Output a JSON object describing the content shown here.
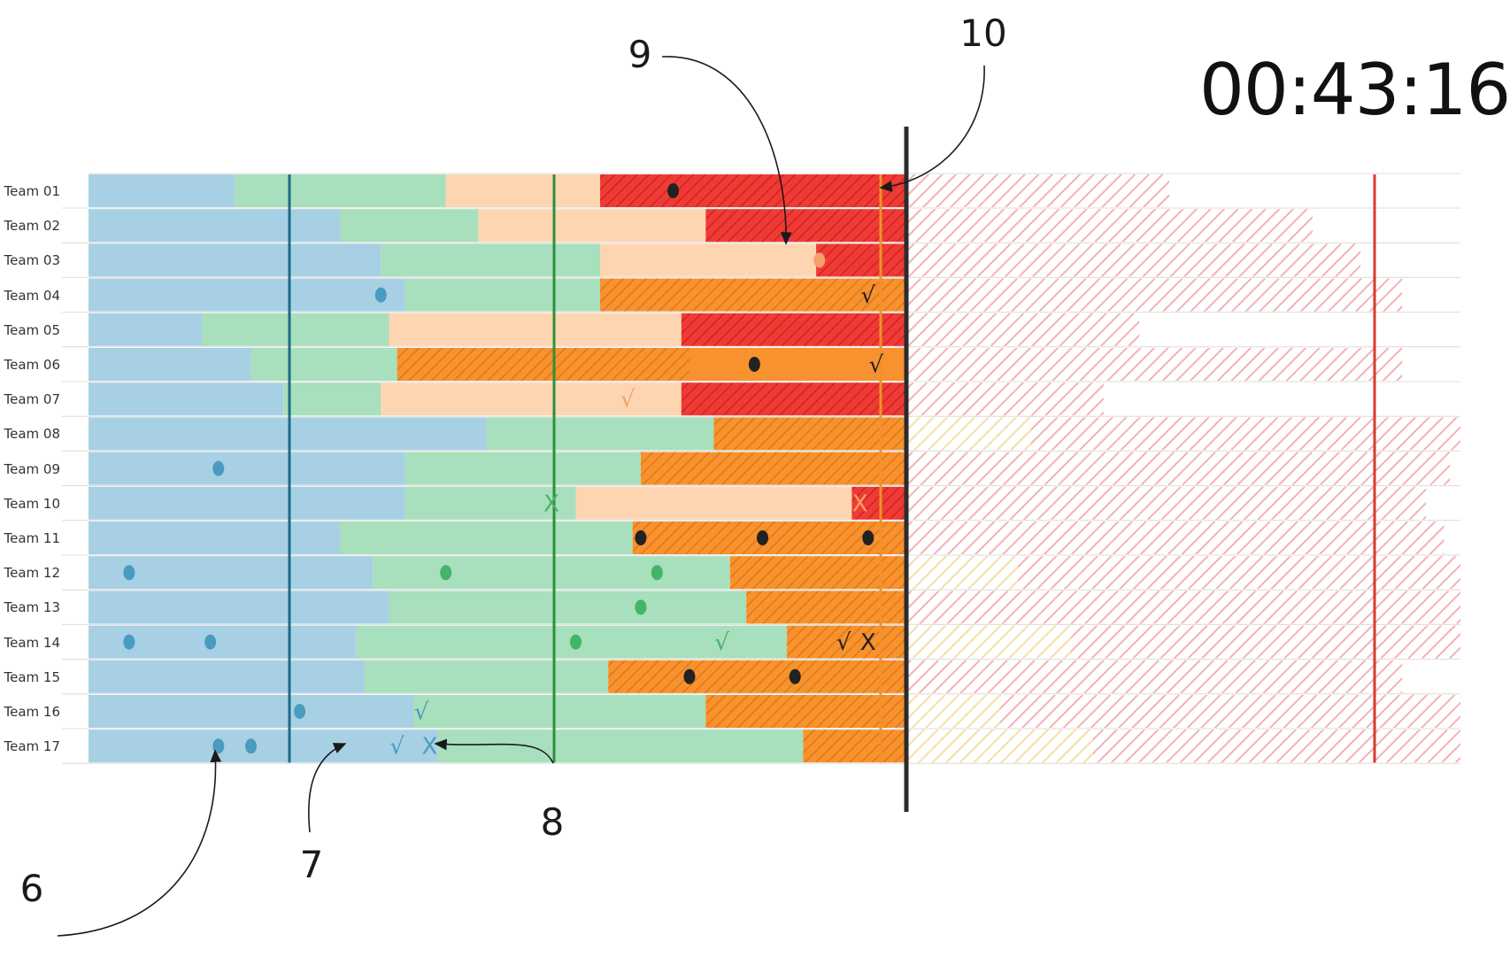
{
  "timer": "00:43:16",
  "callouts": {
    "c6": "6",
    "c7": "7",
    "c8": "8",
    "c9": "9",
    "c10": "10"
  },
  "colors": {
    "phase_blue": "#a8d0e4",
    "phase_green": "#a8dfbc",
    "phase_peach": "#fdd5b0",
    "phase_orange": "#f7922e",
    "phase_red": "#ef3b36",
    "future_hatch": "#f4b2b2",
    "future_hatch_yellow": "#f6dda6",
    "marker_dark_blue": "#1d6a8a",
    "marker_green": "#2f8f3f",
    "marker_orange": "#f0922e",
    "marker_red": "#d83a30",
    "now_line": "#2b2b2b"
  },
  "symbols": {
    "check": "√",
    "cross": "X"
  },
  "teams": [
    {
      "label": "Team 01",
      "green": 9,
      "peach": 22,
      "hatch_start": 31.5,
      "orange": null,
      "red": 31.5,
      "future": 22,
      "marks": [
        {
          "type": "dot",
          "t": 36,
          "c": "dark"
        }
      ]
    },
    {
      "label": "Team 02",
      "green": 15.5,
      "peach": 24,
      "hatch_start": null,
      "orange": null,
      "red": 38,
      "future": 34,
      "marks": []
    },
    {
      "label": "Team 03",
      "green": 18,
      "peach": 31.5,
      "hatch_start": null,
      "orange": null,
      "red": 44.8,
      "future": 38,
      "marks": [
        {
          "type": "dot",
          "t": 45,
          "c": "peach"
        }
      ]
    },
    {
      "label": "Team 04",
      "green": 19.5,
      "peach": null,
      "hatch_start": 31.5,
      "orange": 31.5,
      "red": null,
      "future": 41.5,
      "marks": [
        {
          "type": "dot",
          "t": 18,
          "c": "blue"
        },
        {
          "type": "check",
          "t": 48,
          "c": "dark"
        }
      ]
    },
    {
      "label": "Team 05",
      "green": 7,
      "peach": 18.5,
      "hatch_start": null,
      "orange": null,
      "red": 36.5,
      "future": 19.5,
      "marks": []
    },
    {
      "label": "Team 06",
      "green": 10,
      "peach": null,
      "hatch_start": 19,
      "orange": 19,
      "red": null,
      "future": 41.5,
      "marks": [
        {
          "type": "dot",
          "t": 41,
          "c": "dark"
        },
        {
          "type": "check",
          "t": 48.5,
          "c": "dark"
        }
      ]
    },
    {
      "label": "Team 07",
      "green": 12,
      "peach": 18,
      "hatch_start": null,
      "orange": null,
      "red": 36.5,
      "future": 16.5,
      "marks": [
        {
          "type": "check",
          "t": 33.2,
          "c": "peach"
        }
      ]
    },
    {
      "label": "Team 08",
      "green": 24.5,
      "peach": null,
      "hatch_start": 38.5,
      "orange": 38.5,
      "red": null,
      "future": 99,
      "marks": []
    },
    {
      "label": "Team 09",
      "green": 19.5,
      "peach": null,
      "hatch_start": 34,
      "orange": 34,
      "red": null,
      "future": 45.5,
      "marks": [
        {
          "type": "dot",
          "t": 8,
          "c": "blue"
        }
      ]
    },
    {
      "label": "Team 10",
      "green": 19.5,
      "peach": 30,
      "hatch_start": null,
      "orange": null,
      "red": 47,
      "future": 43.5,
      "marks": [
        {
          "type": "cross",
          "t": 28.5,
          "c": "green"
        },
        {
          "type": "cross",
          "t": 47.5,
          "c": "peach"
        }
      ]
    },
    {
      "label": "Team 11",
      "green": 15.5,
      "peach": null,
      "hatch_start": 33.5,
      "orange": 33.5,
      "red": null,
      "future": 45,
      "marks": [
        {
          "type": "dot",
          "t": 34,
          "c": "dark"
        },
        {
          "type": "dot",
          "t": 41.5,
          "c": "dark"
        },
        {
          "type": "dot",
          "t": 48,
          "c": "dark"
        }
      ]
    },
    {
      "label": "Team 12",
      "green": 17.5,
      "peach": null,
      "hatch_start": 39.5,
      "orange": 39.5,
      "red": null,
      "future": 99,
      "marks": [
        {
          "type": "dot",
          "t": 2.5,
          "c": "blue"
        },
        {
          "type": "dot",
          "t": 22,
          "c": "green"
        },
        {
          "type": "dot",
          "t": 35,
          "c": "green"
        }
      ]
    },
    {
      "label": "Team 13",
      "green": 18.5,
      "peach": null,
      "hatch_start": 40.5,
      "orange": 40.5,
      "red": null,
      "future": 99,
      "marks": [
        {
          "type": "dot",
          "t": 34,
          "c": "green"
        }
      ]
    },
    {
      "label": "Team 14",
      "green": 16.5,
      "peach": null,
      "hatch_start": 43,
      "orange": 43,
      "red": null,
      "future": 99,
      "marks": [
        {
          "type": "dot",
          "t": 2.5,
          "c": "blue"
        },
        {
          "type": "dot",
          "t": 7.5,
          "c": "blue"
        },
        {
          "type": "dot",
          "t": 30,
          "c": "green"
        },
        {
          "type": "check",
          "t": 39,
          "c": "green"
        },
        {
          "type": "check",
          "t": 46.5,
          "c": "dark"
        },
        {
          "type": "cross",
          "t": 48,
          "c": "dark"
        }
      ]
    },
    {
      "label": "Team 15",
      "green": 17,
      "peach": null,
      "hatch_start": 32,
      "orange": 32,
      "red": null,
      "future": 41.5,
      "marks": [
        {
          "type": "dot",
          "t": 37,
          "c": "dark"
        },
        {
          "type": "dot",
          "t": 43.5,
          "c": "dark"
        }
      ]
    },
    {
      "label": "Team 16",
      "green": 20,
      "peach": null,
      "hatch_start": 38,
      "orange": 38,
      "red": null,
      "future": 99,
      "marks": [
        {
          "type": "dot",
          "t": 13,
          "c": "blue"
        },
        {
          "type": "check",
          "t": 20.5,
          "c": "blue"
        }
      ]
    },
    {
      "label": "Team 17",
      "green": 21.5,
      "peach": null,
      "hatch_start": 44,
      "orange": 44,
      "red": null,
      "future": 99,
      "marks": [
        {
          "type": "dot",
          "t": 8,
          "c": "blue"
        },
        {
          "type": "dot",
          "t": 10,
          "c": "blue"
        },
        {
          "type": "check",
          "t": 19,
          "c": "blue"
        },
        {
          "type": "cross",
          "t": 21,
          "c": "blue"
        }
      ]
    }
  ]
}
